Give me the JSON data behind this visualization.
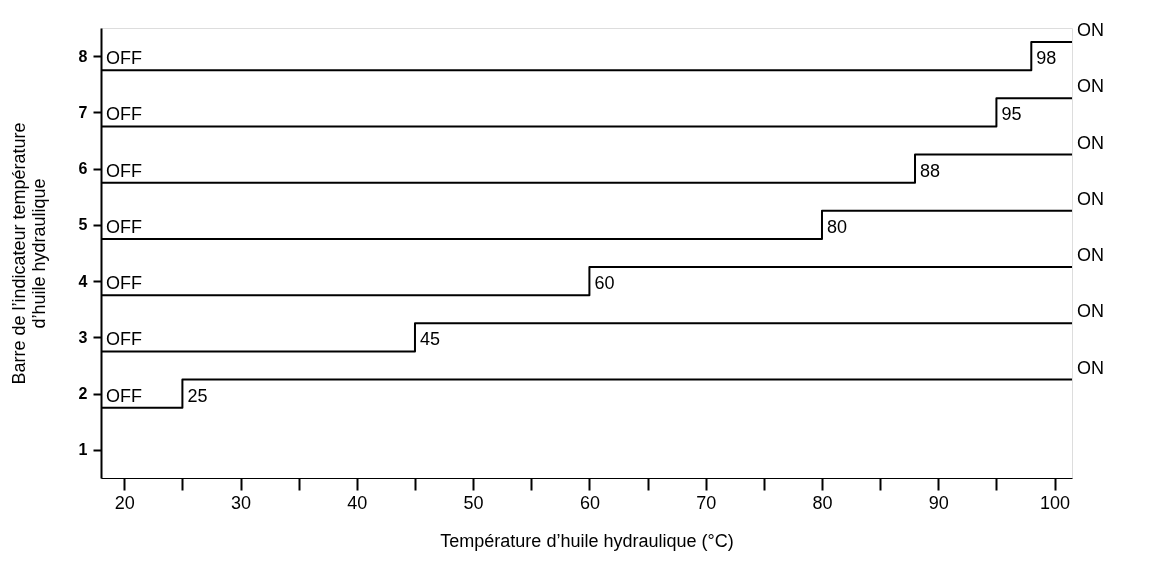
{
  "chart_data": {
    "type": "step",
    "xlabel": "Température d’huile hydraulique (°C)",
    "ylabel": "Barre de l’indicateur température\nd’huile hydraulique",
    "xlim": [
      18,
      101.5
    ],
    "ylim": [
      0.5,
      8.5
    ],
    "xticks": [
      20,
      {
        "value": 25,
        "label": null
      },
      30,
      {
        "value": 35,
        "label": null
      },
      40,
      {
        "value": 45,
        "label": null
      },
      50,
      {
        "value": 55,
        "label": null
      },
      60,
      {
        "value": 65,
        "label": null
      },
      70,
      {
        "value": 75,
        "label": null
      },
      80,
      {
        "value": 85,
        "label": null
      },
      90,
      {
        "value": 95,
        "label": null
      },
      100
    ],
    "yticks": [
      1,
      2,
      3,
      4,
      5,
      6,
      7,
      8
    ],
    "series": [
      {
        "color": "#000000",
        "x": [
          18,
          25,
          101.5
        ],
        "values": [
          1.75,
          2.25,
          2.25
        ]
      },
      {
        "color": "#000000",
        "x": [
          18,
          45,
          101.5
        ],
        "values": [
          2.75,
          3.25,
          3.25
        ]
      },
      {
        "color": "#000000",
        "x": [
          18,
          60,
          101.5
        ],
        "values": [
          3.75,
          4.25,
          4.25
        ]
      },
      {
        "color": "#000000",
        "x": [
          18,
          80,
          101.5
        ],
        "values": [
          4.75,
          5.25,
          5.25
        ]
      },
      {
        "color": "#000000",
        "x": [
          18,
          88,
          101.5
        ],
        "values": [
          5.75,
          6.25,
          6.25
        ]
      },
      {
        "color": "#000000",
        "x": [
          18,
          95,
          101.5
        ],
        "values": [
          6.75,
          7.25,
          7.25
        ]
      },
      {
        "color": "#000000",
        "x": [
          18,
          98,
          101.5
        ],
        "values": [
          7.75,
          8.25,
          8.25
        ]
      }
    ],
    "annotations": [
      {
        "text": "25",
        "x": 25,
        "y": 1.75
      },
      {
        "text": "45",
        "x": 45,
        "y": 2.75
      },
      {
        "text": "60",
        "x": 60,
        "y": 3.75
      },
      {
        "text": "80",
        "x": 80,
        "y": 4.75
      },
      {
        "text": "88",
        "x": 88,
        "y": 5.75
      },
      {
        "text": "95",
        "x": 95,
        "y": 6.75
      },
      {
        "text": "98",
        "x": 98,
        "y": 7.75
      },
      {
        "text": "OFF",
        "x": 18,
        "y": 1.75
      },
      {
        "text": "OFF",
        "x": 18,
        "y": 2.75
      },
      {
        "text": "OFF",
        "x": 18,
        "y": 3.75
      },
      {
        "text": "OFF",
        "x": 18,
        "y": 4.75
      },
      {
        "text": "OFF",
        "x": 18,
        "y": 5.75
      },
      {
        "text": "OFF",
        "x": 18,
        "y": 6.75
      },
      {
        "text": "OFF",
        "x": 18,
        "y": 7.75
      },
      {
        "text": "ON",
        "x": 101.5,
        "y": 2.25
      },
      {
        "text": "ON",
        "x": 101.5,
        "y": 3.25
      },
      {
        "text": "ON",
        "x": 101.5,
        "y": 4.25
      },
      {
        "text": "ON",
        "x": 101.5,
        "y": 5.25
      },
      {
        "text": "ON",
        "x": 101.5,
        "y": 6.25
      },
      {
        "text": "ON",
        "x": 101.5,
        "y": 7.25
      },
      {
        "text": "ON",
        "x": 101.5,
        "y": 8.25
      }
    ],
    "marker": "none",
    "line_style": "solid",
    "grid": false,
    "legend": false
  }
}
